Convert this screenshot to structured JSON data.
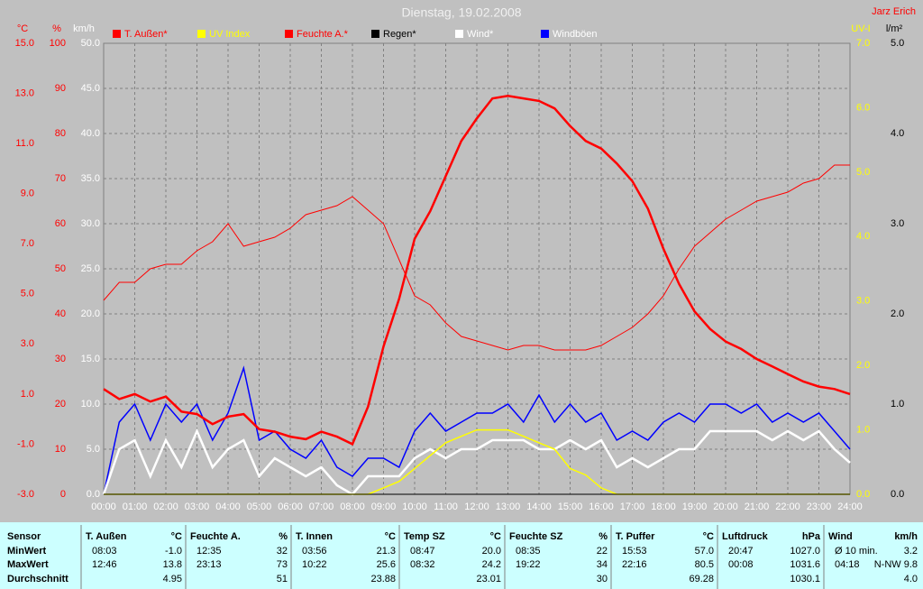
{
  "chart_data": {
    "type": "line",
    "title": "Dienstag, 19.02.2008",
    "author": "Jarz Erich",
    "x": [
      0,
      0.5,
      1,
      1.5,
      2,
      2.5,
      3,
      3.5,
      4,
      4.5,
      5,
      5.5,
      6,
      6.5,
      7,
      7.5,
      8,
      8.5,
      9,
      9.5,
      10,
      10.5,
      11,
      11.5,
      12,
      12.5,
      13,
      13.5,
      14,
      14.5,
      15,
      15.5,
      16,
      16.5,
      17,
      17.5,
      18,
      18.5,
      19,
      19.5,
      20,
      20.5,
      21,
      21.5,
      22,
      22.5,
      23,
      23.5,
      24
    ],
    "xlim": [
      0,
      24
    ],
    "xticks": [
      {
        "value": 0,
        "label": "00:00"
      },
      {
        "value": 1,
        "label": "01:00"
      },
      {
        "value": 2,
        "label": "02:00"
      },
      {
        "value": 3,
        "label": "03:00"
      },
      {
        "value": 4,
        "label": "04:00"
      },
      {
        "value": 5,
        "label": "05:00"
      },
      {
        "value": 6,
        "label": "06:00"
      },
      {
        "value": 7,
        "label": "07:00"
      },
      {
        "value": 8,
        "label": "08:00"
      },
      {
        "value": 9,
        "label": "09:00"
      },
      {
        "value": 10,
        "label": "10:00"
      },
      {
        "value": 11,
        "label": "11:00"
      },
      {
        "value": 12,
        "label": "12:00"
      },
      {
        "value": 13,
        "label": "13:00"
      },
      {
        "value": 14,
        "label": "14:00"
      },
      {
        "value": 15,
        "label": "15:00"
      },
      {
        "value": 16,
        "label": "16:00"
      },
      {
        "value": 17,
        "label": "17:00"
      },
      {
        "value": 18,
        "label": "18:00"
      },
      {
        "value": 19,
        "label": "19:00"
      },
      {
        "value": 20,
        "label": "20:00"
      },
      {
        "value": 21,
        "label": "21:00"
      },
      {
        "value": 22,
        "label": "22:00"
      },
      {
        "value": 23,
        "label": "23:00"
      },
      {
        "value": 24,
        "label": "24:00"
      }
    ],
    "grid": true,
    "axes": [
      {
        "label": "°C",
        "color": "#ff0000",
        "lim": [
          -3,
          15
        ],
        "ticks": [
          {
            "value": -3,
            "label": "-3.0"
          },
          {
            "value": -1,
            "label": "-1.0"
          },
          {
            "value": 1,
            "label": "1.0"
          },
          {
            "value": 3,
            "label": "3.0"
          },
          {
            "value": 5,
            "label": "5.0"
          },
          {
            "value": 7,
            "label": "7.0"
          },
          {
            "value": 9,
            "label": "9.0"
          },
          {
            "value": 11,
            "label": "11.0"
          },
          {
            "value": 13,
            "label": "13.0"
          },
          {
            "value": 15,
            "label": "15.0"
          }
        ]
      },
      {
        "label": "%",
        "color": "#ff0000",
        "lim": [
          0,
          100
        ],
        "ticks": [
          0,
          10,
          20,
          30,
          40,
          50,
          60,
          70,
          80,
          90,
          100
        ]
      },
      {
        "label": "km/h",
        "color": "#ffffff",
        "lim": [
          0,
          50
        ],
        "ticks": [
          {
            "value": 0,
            "label": "0.0"
          },
          {
            "value": 5,
            "label": "5.0"
          },
          {
            "value": 10,
            "label": "10.0"
          },
          {
            "value": 15,
            "label": "15.0"
          },
          {
            "value": 20,
            "label": "20.0"
          },
          {
            "value": 25,
            "label": "25.0"
          },
          {
            "value": 30,
            "label": "30.0"
          },
          {
            "value": 35,
            "label": "35.0"
          },
          {
            "value": 40,
            "label": "40.0"
          },
          {
            "value": 45,
            "label": "45.0"
          },
          {
            "value": 50,
            "label": "50.0"
          }
        ]
      },
      {
        "label": "UV-I",
        "color": "#ffff00",
        "lim": [
          0,
          7
        ],
        "ticks": [
          {
            "value": 0,
            "label": "0.0"
          },
          {
            "value": 1,
            "label": "1.0"
          },
          {
            "value": 2,
            "label": "2.0"
          },
          {
            "value": 3,
            "label": "3.0"
          },
          {
            "value": 4,
            "label": "4.0"
          },
          {
            "value": 5,
            "label": "5.0"
          },
          {
            "value": 6,
            "label": "6.0"
          },
          {
            "value": 7,
            "label": "7.0"
          }
        ]
      },
      {
        "label": "l/m²",
        "color": "#000000",
        "lim": [
          0,
          5
        ],
        "ticks": [
          {
            "value": 0,
            "label": "0.0"
          },
          {
            "value": 1,
            "label": "1.0"
          },
          {
            "value": 2,
            "label": "2.0"
          },
          {
            "value": 3,
            "label": "3.0"
          },
          {
            "value": 4,
            "label": "4.0"
          },
          {
            "value": 5,
            "label": "5.0"
          }
        ]
      }
    ],
    "series": [
      {
        "name": "T. Außen*",
        "color": "#ff0000",
        "axis": 0,
        "values": [
          1.2,
          0.8,
          1.0,
          0.7,
          0.9,
          0.3,
          0.2,
          -0.2,
          0.1,
          0.2,
          -0.4,
          -0.5,
          -0.7,
          -0.8,
          -0.5,
          -0.7,
          -1.0,
          0.5,
          2.9,
          4.8,
          7.2,
          8.3,
          9.7,
          11.1,
          12.0,
          12.8,
          12.9,
          12.8,
          12.7,
          12.4,
          11.7,
          11.1,
          10.8,
          10.2,
          9.5,
          8.4,
          6.8,
          5.4,
          4.3,
          3.6,
          3.1,
          2.8,
          2.4,
          2.1,
          1.8,
          1.5,
          1.3,
          1.2,
          1.0
        ]
      },
      {
        "name": "UV Index",
        "color": "#ffff00",
        "axis": 3,
        "values": [
          0,
          0,
          0,
          0,
          0,
          0,
          0,
          0,
          0,
          0,
          0,
          0,
          0,
          0,
          0,
          0,
          0,
          0,
          0.1,
          0.2,
          0.4,
          0.6,
          0.8,
          0.9,
          1.0,
          1.0,
          1.0,
          0.9,
          0.8,
          0.7,
          0.4,
          0.3,
          0.1,
          0,
          0,
          0,
          0,
          0,
          0,
          0,
          0,
          0,
          0,
          0,
          0,
          0,
          0,
          0,
          0
        ]
      },
      {
        "name": "Feuchte A.*",
        "color": "#ff0000",
        "axis": 1,
        "values": [
          43,
          47,
          47,
          50,
          51,
          51,
          54,
          56,
          60,
          55,
          56,
          57,
          59,
          62,
          63,
          64,
          66,
          63,
          60,
          52,
          44,
          42,
          38,
          35,
          34,
          33,
          32,
          33,
          33,
          32,
          32,
          32,
          33,
          35,
          37,
          40,
          44,
          50,
          55,
          58,
          61,
          63,
          65,
          66,
          67,
          69,
          70,
          73,
          73
        ]
      },
      {
        "name": "Regen*",
        "color": "#000000",
        "axis": 4,
        "values": [
          0,
          0,
          0,
          0,
          0,
          0,
          0,
          0,
          0,
          0,
          0,
          0,
          0,
          0,
          0,
          0,
          0,
          0,
          0,
          0,
          0,
          0,
          0,
          0,
          0,
          0,
          0,
          0,
          0,
          0,
          0,
          0,
          0,
          0,
          0,
          0,
          0,
          0,
          0,
          0,
          0,
          0,
          0,
          0,
          0,
          0,
          0,
          0,
          0
        ]
      },
      {
        "name": "Wind*",
        "color": "#ffffff",
        "axis": 2,
        "values": [
          0,
          5,
          6,
          2,
          6,
          3,
          7,
          3,
          5,
          6,
          2,
          4,
          3,
          2,
          3,
          1,
          0,
          2,
          2,
          2,
          4,
          5,
          4,
          5,
          5,
          6,
          6,
          6,
          5,
          5,
          6,
          5,
          6,
          3,
          4,
          3,
          4,
          5,
          5,
          7,
          7,
          7,
          7,
          6,
          7,
          6,
          7,
          5,
          3.5
        ]
      },
      {
        "name": "Windböen",
        "color": "#0000ff",
        "axis": 2,
        "values": [
          0,
          8,
          10,
          6,
          10,
          8,
          10,
          6,
          9,
          14,
          6,
          7,
          5,
          4,
          6,
          3,
          2,
          4,
          4,
          3,
          7,
          9,
          7,
          8,
          9,
          9,
          10,
          8,
          11,
          8,
          10,
          8,
          9,
          6,
          7,
          6,
          8,
          9,
          8,
          10,
          10,
          9,
          10,
          8,
          9,
          8,
          9,
          7,
          5
        ]
      }
    ]
  },
  "table": {
    "header": "Sensor",
    "row_labels": [
      "MinWert",
      "MaxWert",
      "Durchschnitt"
    ],
    "groups": [
      {
        "name": "T. Außen",
        "unit": "°C",
        "cells": [
          [
            "08:03",
            "-1.0"
          ],
          [
            "12:46",
            "13.8"
          ],
          [
            "4.95"
          ]
        ]
      },
      {
        "name": "Feuchte A.",
        "unit": "%",
        "cells": [
          [
            "12:35",
            "32"
          ],
          [
            "23:13",
            "73"
          ],
          [
            "51"
          ]
        ]
      },
      {
        "name": "T. Innen",
        "unit": "°C",
        "cells": [
          [
            "03:56",
            "21.3"
          ],
          [
            "10:22",
            "25.6"
          ],
          [
            "23.88"
          ]
        ]
      },
      {
        "name": "Temp SZ",
        "unit": "°C",
        "cells": [
          [
            "08:47",
            "20.0"
          ],
          [
            "08:32",
            "24.2"
          ],
          [
            "23.01"
          ]
        ]
      },
      {
        "name": "Feuchte SZ",
        "unit": "%",
        "cells": [
          [
            "08:35",
            "22"
          ],
          [
            "19:22",
            "34"
          ],
          [
            "30"
          ]
        ]
      },
      {
        "name": "T. Puffer",
        "unit": "°C",
        "cells": [
          [
            "15:53",
            "57.0"
          ],
          [
            "22:16",
            "80.5"
          ],
          [
            "69.28"
          ]
        ]
      },
      {
        "name": "Luftdruck",
        "unit": "hPa",
        "cells": [
          [
            "20:47",
            "1027.0"
          ],
          [
            "00:08",
            "1031.6"
          ],
          [
            "1030.1"
          ]
        ]
      },
      {
        "name": "Wind",
        "unit": "km/h",
        "cells": [
          [
            "Ø 10 min.",
            "3.2"
          ],
          [
            "04:18",
            "N-NW 9.8"
          ],
          [
            "4.0"
          ]
        ]
      }
    ]
  }
}
